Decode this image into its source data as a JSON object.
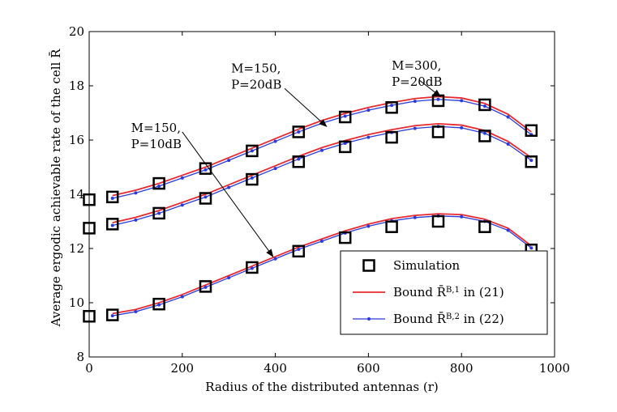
{
  "chart_data": {
    "type": "line",
    "title": "",
    "xlabel": "Radius of the distributed antennas (r)",
    "ylabel": "Average ergodic achievable rate of the cell R̄",
    "xlim": [
      0,
      1000
    ],
    "ylim": [
      8,
      20
    ],
    "xticks": [
      0,
      200,
      400,
      600,
      800,
      1000
    ],
    "yticks": [
      8,
      10,
      12,
      14,
      16,
      18,
      20
    ],
    "grid": false,
    "legend_position": "bottom-right",
    "legend": [
      {
        "label": "Simulation",
        "style": "marker-square",
        "color": "#000000"
      },
      {
        "label_main": "Bound R̄",
        "label_sup": "B,1",
        "label_tail": " in (21)",
        "style": "line",
        "color": "#e8292f"
      },
      {
        "label_main": "Bound R̄",
        "label_sup": "B,2",
        "label_tail": " in (22)",
        "style": "line-dots",
        "color": "#2b3bd9"
      }
    ],
    "groups": [
      {
        "name": "M=300, P=20dB",
        "simulation": {
          "x": [
            0,
            50,
            150,
            250,
            350,
            450,
            550,
            650,
            750,
            850,
            950
          ],
          "y": [
            13.8,
            13.9,
            14.4,
            14.95,
            15.6,
            16.3,
            16.85,
            17.2,
            17.45,
            17.3,
            16.35
          ]
        },
        "bound1": {
          "x": [
            50,
            100,
            150,
            200,
            250,
            300,
            350,
            400,
            450,
            500,
            550,
            600,
            650,
            700,
            750,
            800,
            850,
            900,
            950
          ],
          "y": [
            13.95,
            14.15,
            14.4,
            14.7,
            15.0,
            15.35,
            15.7,
            16.05,
            16.4,
            16.72,
            16.98,
            17.2,
            17.38,
            17.53,
            17.6,
            17.55,
            17.35,
            16.95,
            16.3
          ]
        },
        "bound2": {
          "x": [
            50,
            100,
            150,
            200,
            250,
            300,
            350,
            400,
            450,
            500,
            550,
            600,
            650,
            700,
            750,
            800,
            850,
            900,
            950
          ],
          "y": [
            13.85,
            14.05,
            14.3,
            14.6,
            14.9,
            15.25,
            15.6,
            15.95,
            16.3,
            16.62,
            16.88,
            17.1,
            17.28,
            17.43,
            17.5,
            17.45,
            17.25,
            16.85,
            16.2
          ]
        }
      },
      {
        "name": "M=150, P=20dB",
        "simulation": {
          "x": [
            0,
            50,
            150,
            250,
            350,
            450,
            550,
            650,
            750,
            850,
            950
          ],
          "y": [
            12.75,
            12.9,
            13.3,
            13.85,
            14.55,
            15.2,
            15.75,
            16.1,
            16.3,
            16.15,
            15.2
          ]
        },
        "bound1": {
          "x": [
            50,
            100,
            150,
            200,
            250,
            300,
            350,
            400,
            450,
            500,
            550,
            600,
            650,
            700,
            750,
            800,
            850,
            900,
            950
          ],
          "y": [
            12.95,
            13.15,
            13.4,
            13.7,
            14.0,
            14.35,
            14.7,
            15.05,
            15.4,
            15.72,
            15.98,
            16.2,
            16.38,
            16.53,
            16.6,
            16.55,
            16.35,
            15.95,
            15.35
          ]
        },
        "bound2": {
          "x": [
            50,
            100,
            150,
            200,
            250,
            300,
            350,
            400,
            450,
            500,
            550,
            600,
            650,
            700,
            750,
            800,
            850,
            900,
            950
          ],
          "y": [
            12.85,
            13.05,
            13.3,
            13.6,
            13.9,
            14.25,
            14.6,
            14.95,
            15.3,
            15.62,
            15.88,
            16.1,
            16.28,
            16.43,
            16.5,
            16.45,
            16.25,
            15.85,
            15.25
          ]
        }
      },
      {
        "name": "M=150, P=10dB",
        "simulation": {
          "x": [
            0,
            50,
            150,
            250,
            350,
            450,
            550,
            650,
            750,
            850,
            950
          ],
          "y": [
            9.5,
            9.55,
            9.95,
            10.6,
            11.3,
            11.9,
            12.4,
            12.8,
            13.0,
            12.8,
            11.95
          ]
        },
        "bound1": {
          "x": [
            50,
            100,
            150,
            200,
            250,
            300,
            350,
            400,
            450,
            500,
            550,
            600,
            650,
            700,
            750,
            800,
            850,
            900,
            950
          ],
          "y": [
            9.6,
            9.75,
            10.0,
            10.3,
            10.65,
            11.0,
            11.35,
            11.7,
            12.05,
            12.35,
            12.65,
            12.9,
            13.1,
            13.22,
            13.28,
            13.25,
            13.08,
            12.75,
            12.1
          ]
        },
        "bound2": {
          "x": [
            50,
            100,
            150,
            200,
            250,
            300,
            350,
            400,
            450,
            500,
            550,
            600,
            650,
            700,
            750,
            800,
            850,
            900,
            950
          ],
          "y": [
            9.52,
            9.67,
            9.92,
            10.22,
            10.57,
            10.92,
            11.27,
            11.62,
            11.97,
            12.27,
            12.57,
            12.82,
            13.02,
            13.14,
            13.2,
            13.17,
            13.0,
            12.67,
            12.02
          ]
        }
      }
    ],
    "annotations": [
      {
        "line1": "M=300,",
        "line2": "P=20dB",
        "text_x": 650,
        "text_y": 18.6,
        "arrow_from": [
          710,
          18.2
        ],
        "arrow_to": [
          755,
          17.6
        ]
      },
      {
        "line1": "M=150,",
        "line2": "P=20dB",
        "text_x": 305,
        "text_y": 18.5,
        "arrow_from": [
          420,
          17.9
        ],
        "arrow_to": [
          510,
          16.5
        ]
      },
      {
        "line1": "M=150,",
        "line2": "P=10dB",
        "text_x": 90,
        "text_y": 16.3,
        "arrow_from": [
          200,
          16.3
        ],
        "arrow_to": [
          395,
          11.7
        ]
      }
    ]
  }
}
